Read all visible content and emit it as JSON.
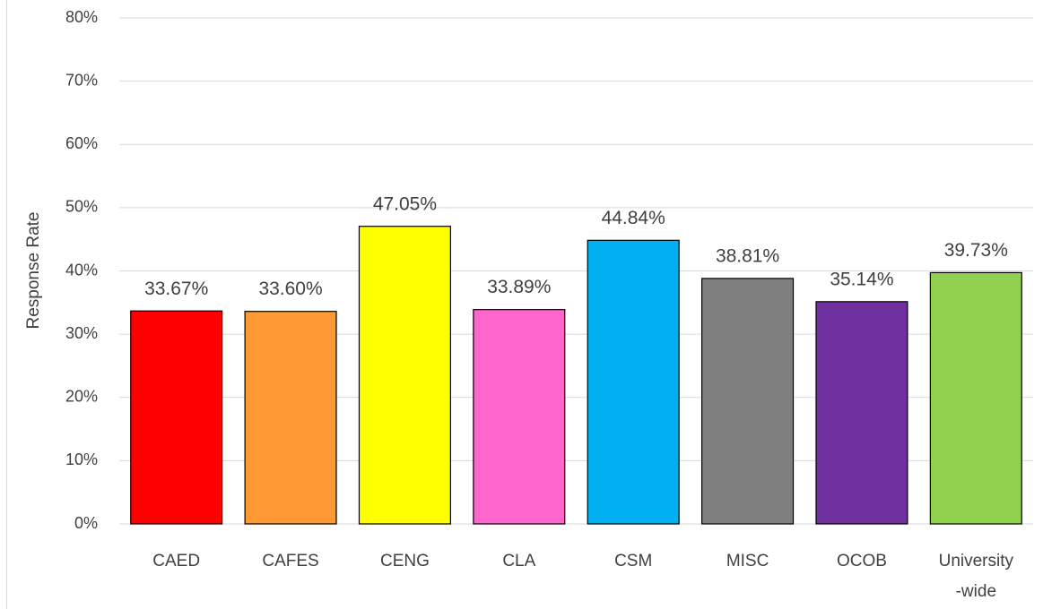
{
  "chart_data": {
    "type": "bar",
    "y_label": "Response Rate",
    "categories": [
      "CAED",
      "CAFES",
      "CENG",
      "CLA",
      "CSM",
      "MISC",
      "OCOB",
      "University\n-wide"
    ],
    "values": [
      33.67,
      33.6,
      47.05,
      33.89,
      44.84,
      38.81,
      35.14,
      39.73
    ],
    "value_labels": [
      "33.67%",
      "33.60%",
      "47.05%",
      "33.89%",
      "44.84%",
      "38.81%",
      "35.14%",
      "39.73%"
    ],
    "colors": [
      "#ff0000",
      "#ff9933",
      "#ffff00",
      "#ff66cc",
      "#00b0f0",
      "#7f7f7f",
      "#7030a0",
      "#92d050"
    ],
    "ylim": [
      0,
      80
    ],
    "yticks": [
      {
        "value": 0,
        "label": "0%"
      },
      {
        "value": 10,
        "label": "10%"
      },
      {
        "value": 20,
        "label": "20%"
      },
      {
        "value": 30,
        "label": "30%"
      },
      {
        "value": 40,
        "label": "40%"
      },
      {
        "value": 50,
        "label": "50%"
      },
      {
        "value": 60,
        "label": "60%"
      },
      {
        "value": 70,
        "label": "70%"
      },
      {
        "value": 80,
        "label": "80%"
      }
    ],
    "grid": true
  }
}
